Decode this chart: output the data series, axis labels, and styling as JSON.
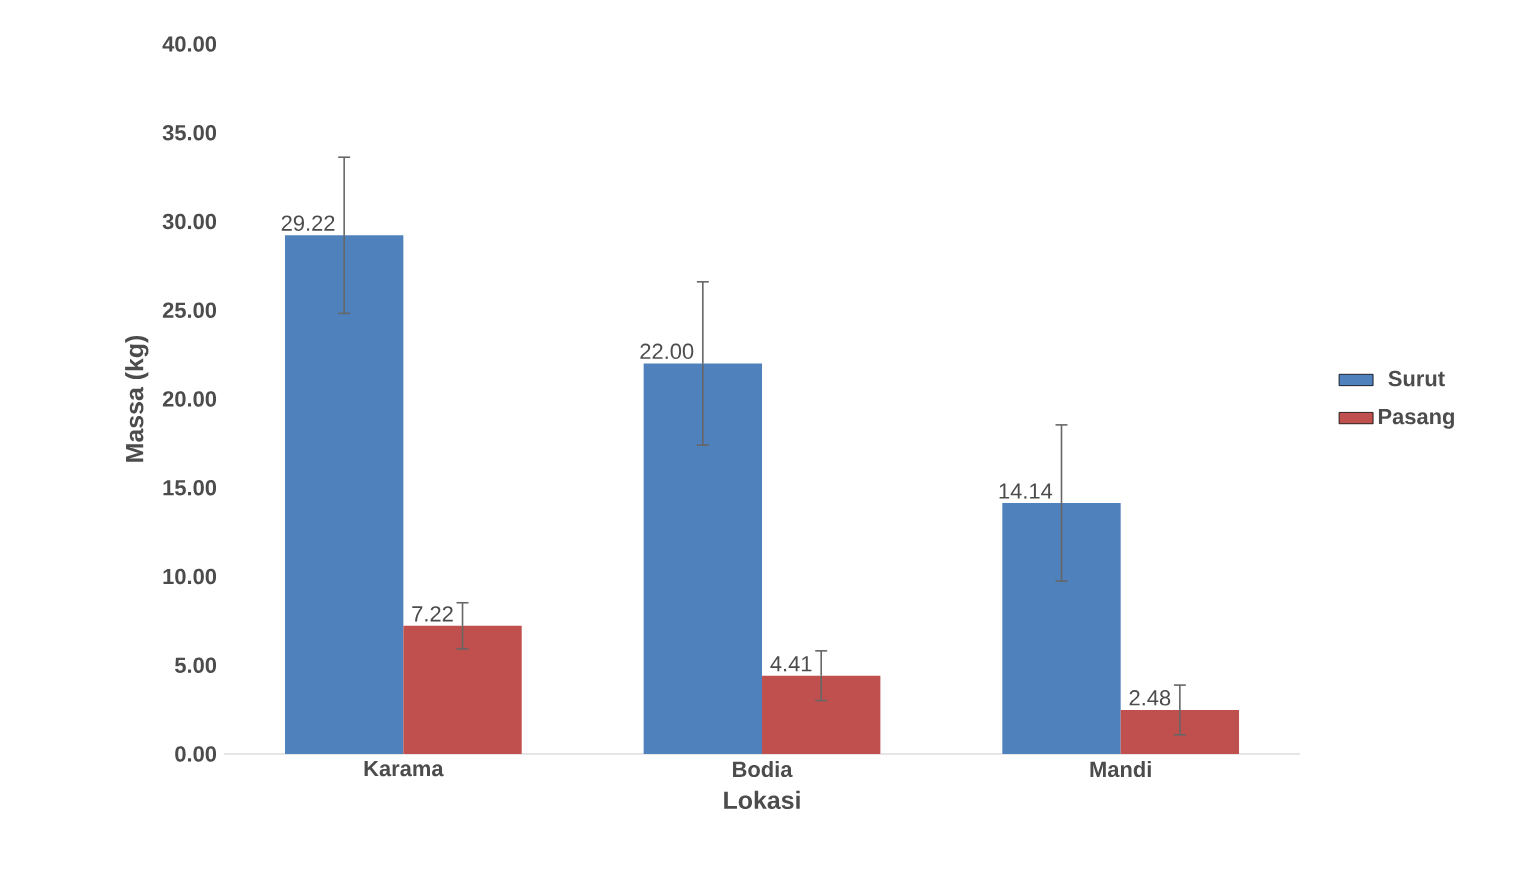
{
  "chart_data": {
    "type": "bar",
    "xlabel": "Lokasi",
    "ylabel": "Massa (kg)",
    "categories": [
      "Karama",
      "Bodia",
      "Mandi"
    ],
    "series": [
      {
        "name": "Surut",
        "color": "#4f81bd",
        "values": [
          29.22,
          22.0,
          14.14
        ],
        "errors": [
          4.4,
          4.6,
          4.4
        ],
        "value_labels": [
          "29.22",
          "22.00",
          "14.14"
        ]
      },
      {
        "name": "Pasang",
        "color": "#c0504d",
        "values": [
          7.22,
          4.41,
          2.48
        ],
        "errors": [
          1.3,
          1.4,
          1.4
        ],
        "value_labels": [
          "7.22",
          "4.41",
          "2.48"
        ]
      }
    ],
    "ylim": [
      0,
      40
    ],
    "yticks": [
      {
        "value": 0,
        "label": "0.00"
      },
      {
        "value": 5,
        "label": "5.00"
      },
      {
        "value": 10,
        "label": "10.00"
      },
      {
        "value": 15,
        "label": "15.00"
      },
      {
        "value": 20,
        "label": "20.00"
      },
      {
        "value": 25,
        "label": "25.00"
      },
      {
        "value": 30,
        "label": "30.00"
      },
      {
        "value": 35,
        "label": "35.00"
      },
      {
        "value": 40,
        "label": "40.00"
      }
    ],
    "legend": "right",
    "grid": false
  }
}
